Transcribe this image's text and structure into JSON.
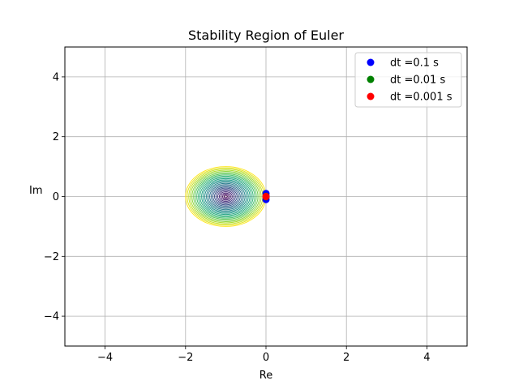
{
  "chart_data": {
    "type": "scatter",
    "title": "Stability Region of Euler",
    "xlabel": "Re",
    "ylabel": "Im",
    "xlim": [
      -5,
      5
    ],
    "ylim": [
      -5,
      5
    ],
    "xticks": [
      -4,
      -2,
      0,
      2,
      4
    ],
    "yticks": [
      -4,
      -2,
      0,
      2,
      4
    ],
    "grid": true,
    "legend_position": "top-right",
    "contour": {
      "center": [
        -1,
        0
      ],
      "levels": [
        0.04,
        0.08,
        0.12,
        0.16,
        0.2,
        0.24,
        0.28,
        0.32,
        0.36,
        0.4,
        0.44,
        0.48,
        0.52,
        0.56,
        0.6,
        0.64,
        0.68,
        0.72,
        0.76,
        0.8,
        0.84,
        0.88,
        0.92,
        0.96,
        1.0
      ],
      "colormap": "viridis"
    },
    "series": [
      {
        "name": "dt =0.1 s",
        "color": "#0000ff",
        "points": [
          [
            0,
            0.1
          ],
          [
            0,
            -0.1
          ]
        ]
      },
      {
        "name": "dt =0.01 s",
        "color": "#008000",
        "points": [
          [
            0,
            0.01
          ],
          [
            0,
            -0.01
          ]
        ]
      },
      {
        "name": "dt =0.001 s",
        "color": "#ff0000",
        "points": [
          [
            0,
            0.001
          ],
          [
            0,
            -0.001
          ]
        ]
      }
    ]
  }
}
